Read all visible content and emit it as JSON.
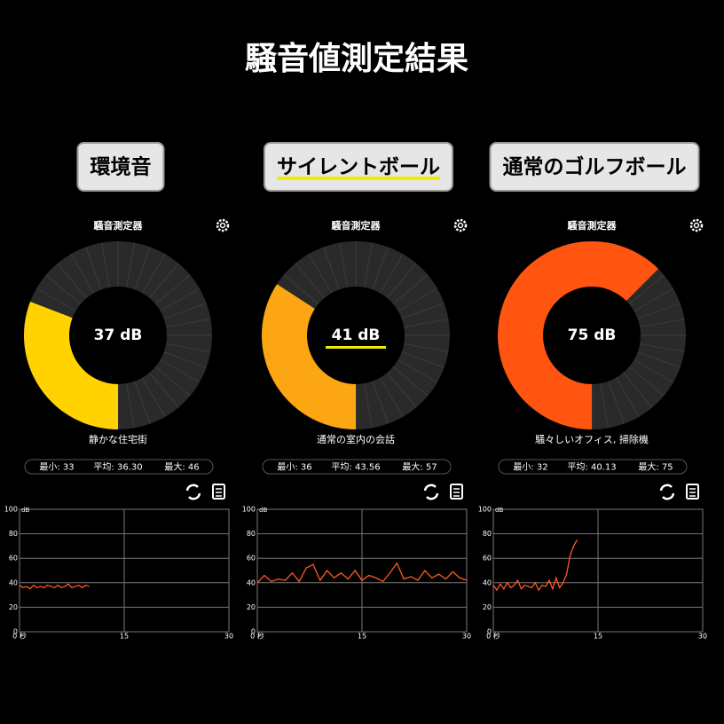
{
  "title": "騒音値測定結果",
  "panels": [
    {
      "label": "環境音",
      "app_title": "騒音測定器",
      "gauge": {
        "value": 37,
        "value_label": "37 dB",
        "color": "#ffd200",
        "lim": [
          0,
          120
        ]
      },
      "description": "静かな住宅街",
      "stats": [
        "最小: 33",
        "平均: 36.30",
        "最大: 46"
      ]
    },
    {
      "label": "サイレントボール",
      "app_title": "騒音測定器",
      "gauge": {
        "value": 41,
        "value_label": "41 dB",
        "color": "#fba612",
        "lim": [
          0,
          120
        ]
      },
      "description": "通常の室内の会話",
      "stats": [
        "最小: 36",
        "平均: 43.56",
        "最大: 57"
      ]
    },
    {
      "label": "通常のゴルフボール",
      "app_title": "騒音測定器",
      "gauge": {
        "value": 75,
        "value_label": "75 dB",
        "color": "#ff5510",
        "lim": [
          0,
          120
        ]
      },
      "description": "騒々しいオフィス, 掃除機",
      "stats": [
        "最小: 32",
        "平均: 40.13",
        "最大: 75"
      ]
    }
  ],
  "chart_data": [
    {
      "type": "line",
      "ylabel": "dB",
      "xlim": [
        0,
        30
      ],
      "ylim": [
        0,
        100
      ],
      "xticks": [
        {
          "value": 0,
          "label": "0 秒"
        },
        15,
        30
      ],
      "yticks": [
        0,
        20,
        40,
        60,
        80,
        100
      ],
      "grid": true,
      "x": [
        0,
        0.5,
        1,
        1.5,
        2,
        2.5,
        3,
        3.5,
        4,
        4.5,
        5,
        5.5,
        6,
        6.5,
        7,
        7.5,
        8,
        8.5,
        9,
        9.5,
        10
      ],
      "series": [
        {
          "name": "dB",
          "color": "#ff5a1f",
          "values": [
            38,
            36,
            37,
            35,
            38,
            36,
            37,
            36,
            38,
            37,
            36,
            38,
            36,
            37,
            39,
            36,
            37,
            38,
            36,
            38,
            37
          ]
        }
      ]
    },
    {
      "type": "line",
      "ylabel": "dB",
      "xlim": [
        0,
        30
      ],
      "ylim": [
        0,
        100
      ],
      "xticks": [
        {
          "value": 0,
          "label": "0 秒"
        },
        15,
        30
      ],
      "yticks": [
        0,
        20,
        40,
        60,
        80,
        100
      ],
      "grid": true,
      "x": [
        0,
        1,
        2,
        3,
        4,
        5,
        6,
        7,
        8,
        9,
        10,
        11,
        12,
        13,
        14,
        15,
        16,
        17,
        18,
        19,
        20,
        21,
        22,
        23,
        24,
        25,
        26,
        27,
        28,
        29,
        30
      ],
      "series": [
        {
          "name": "dB",
          "color": "#ff5a1f",
          "values": [
            40,
            46,
            41,
            43,
            42,
            48,
            41,
            52,
            55,
            42,
            50,
            44,
            48,
            43,
            50,
            42,
            46,
            44,
            41,
            48,
            56,
            43,
            45,
            42,
            50,
            44,
            47,
            43,
            49,
            44,
            42
          ]
        }
      ]
    },
    {
      "type": "line",
      "ylabel": "dB",
      "xlim": [
        0,
        30
      ],
      "ylim": [
        0,
        100
      ],
      "xticks": [
        {
          "value": 0,
          "label": "0 秒"
        },
        15,
        30
      ],
      "yticks": [
        0,
        20,
        40,
        60,
        80,
        100
      ],
      "grid": true,
      "x": [
        0,
        0.5,
        1,
        1.5,
        2,
        2.5,
        3,
        3.5,
        4,
        4.5,
        5,
        5.5,
        6,
        6.5,
        7,
        7.5,
        8,
        8.5,
        9,
        9.5,
        10,
        10.5,
        11,
        11.5,
        12
      ],
      "series": [
        {
          "name": "dB",
          "color": "#ff5a1f",
          "values": [
            38,
            34,
            39,
            35,
            40,
            36,
            38,
            42,
            35,
            38,
            37,
            36,
            40,
            34,
            38,
            37,
            42,
            35,
            44,
            36,
            40,
            47,
            62,
            70,
            75
          ]
        }
      ]
    }
  ]
}
